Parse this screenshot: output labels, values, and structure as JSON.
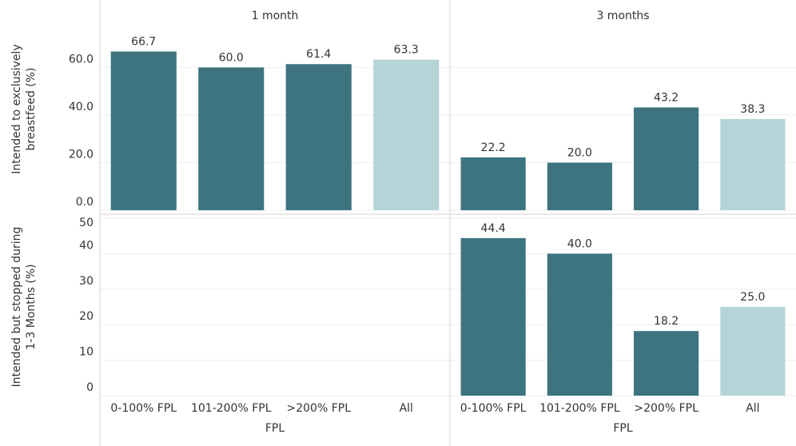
{
  "chart_data": {
    "type": "bar",
    "columns": [
      "1 month",
      "3 months"
    ],
    "categories": [
      "0-100% FPL",
      "101-200% FPL",
      ">200% FPL",
      "All"
    ],
    "colors": [
      "#3d7480",
      "#3d7480",
      "#3d7480",
      "#b5d4d8"
    ],
    "xlabel": "FPL",
    "rows": [
      {
        "ylabel": [
          "Intended to exclusively",
          "breastfeed (%)"
        ],
        "ylim": [
          0,
          85
        ],
        "yticks": [
          {
            "value": 0,
            "label": "0.0"
          },
          {
            "value": 20,
            "label": "20.0"
          },
          {
            "value": 40,
            "label": "40.0"
          },
          {
            "value": 60,
            "label": "60.0"
          }
        ],
        "panels": [
          {
            "values": [
              66.7,
              60.0,
              61.4,
              63.3
            ],
            "value_labels": [
              "66.7",
              "60.0",
              "61.4",
              "63.3"
            ]
          },
          {
            "values": [
              22.2,
              20.0,
              43.2,
              38.3
            ],
            "value_labels": [
              "22.2",
              "20.0",
              "43.2",
              "38.3"
            ]
          }
        ]
      },
      {
        "ylabel": [
          "Intended but stopped during",
          "1-3 Months (%)"
        ],
        "ylim": [
          0,
          50
        ],
        "yticks": [
          0,
          10,
          20,
          30,
          40,
          50
        ],
        "panels": [
          {
            "values": [
              null,
              null,
              null,
              null
            ],
            "value_labels": [
              null,
              null,
              null,
              null
            ]
          },
          {
            "values": [
              44.4,
              40.0,
              18.2,
              25.0
            ],
            "value_labels": [
              "44.4",
              "40.0",
              "18.2",
              "25.0"
            ]
          }
        ]
      }
    ]
  }
}
